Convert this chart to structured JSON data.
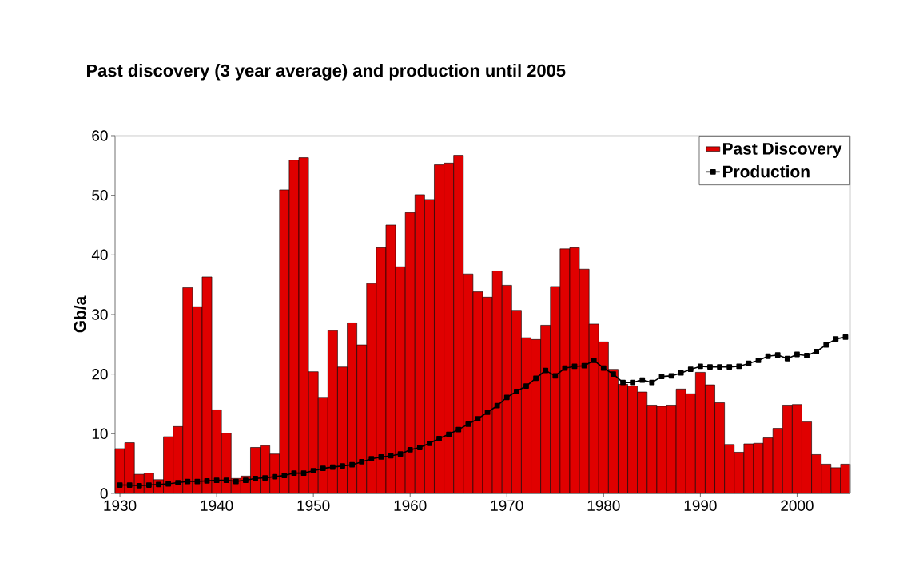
{
  "chart_data": {
    "type": "bar",
    "title": "Past discovery (3 year average) and production until 2005",
    "ylabel": "Gb/a",
    "x": [
      1930,
      1931,
      1932,
      1933,
      1934,
      1935,
      1936,
      1937,
      1938,
      1939,
      1940,
      1941,
      1942,
      1943,
      1944,
      1945,
      1946,
      1947,
      1948,
      1949,
      1950,
      1951,
      1952,
      1953,
      1954,
      1955,
      1956,
      1957,
      1958,
      1959,
      1960,
      1961,
      1962,
      1963,
      1964,
      1965,
      1966,
      1967,
      1968,
      1969,
      1970,
      1971,
      1972,
      1973,
      1974,
      1975,
      1976,
      1977,
      1978,
      1979,
      1980,
      1981,
      1982,
      1983,
      1984,
      1985,
      1986,
      1987,
      1988,
      1989,
      1990,
      1991,
      1992,
      1993,
      1994,
      1995,
      1996,
      1997,
      1998,
      1999,
      2000,
      2001,
      2002,
      2003,
      2004,
      2005
    ],
    "series": [
      {
        "name": "Past Discovery",
        "color": "#e00000",
        "values": [
          7.5,
          8.5,
          3.2,
          3.4,
          2.3,
          9.5,
          11.2,
          34.5,
          31.3,
          36.3,
          14,
          10.1,
          2.5,
          2.9,
          7.7,
          8,
          6.6,
          50.9,
          55.9,
          56.3,
          20.4,
          16.1,
          27.3,
          21.2,
          28.6,
          24.9,
          35.2,
          41.2,
          45,
          38,
          47.1,
          50.1,
          49.3,
          55.1,
          55.4,
          56.7,
          36.8,
          33.8,
          32.9,
          37.3,
          34.9,
          30.7,
          26.1,
          25.8,
          28.2,
          34.7,
          41,
          41.2,
          37.6,
          28.4,
          25.4,
          20.8,
          18.3,
          18,
          17,
          14.8,
          14.6,
          14.8,
          17.5,
          16.7,
          20.3,
          18.2,
          15.2,
          8.2,
          6.9,
          8.3,
          8.4,
          9.3,
          10.9,
          14.8,
          14.9,
          12,
          6.5,
          4.9,
          4.3,
          4.9
        ]
      },
      {
        "name": "Production",
        "type": "line",
        "color": "#000000",
        "marker": "square",
        "values": [
          1.4,
          1.4,
          1.3,
          1.4,
          1.5,
          1.6,
          1.8,
          2.0,
          2.0,
          2.1,
          2.2,
          2.2,
          2.0,
          2.2,
          2.5,
          2.6,
          2.8,
          3.0,
          3.4,
          3.4,
          3.8,
          4.2,
          4.4,
          4.6,
          4.8,
          5.3,
          5.8,
          6.1,
          6.3,
          6.6,
          7.3,
          7.7,
          8.4,
          9.2,
          9.9,
          10.7,
          11.6,
          12.5,
          13.6,
          14.7,
          16.1,
          17.1,
          18.0,
          19.3,
          20.6,
          19.7,
          21.0,
          21.3,
          21.4,
          22.3,
          21.0,
          20.0,
          18.6,
          18.6,
          19.0,
          18.6,
          19.6,
          19.7,
          20.2,
          20.8,
          21.3,
          21.2,
          21.2,
          21.2,
          21.3,
          21.8,
          22.3,
          23.0,
          23.2,
          22.6,
          23.3,
          23.1,
          23.8,
          24.9,
          25.9,
          26.2
        ]
      }
    ],
    "xlim": [
      1929.5,
      2005.5
    ],
    "xticks": [
      1930,
      1940,
      1950,
      1960,
      1970,
      1980,
      1990,
      2000
    ],
    "ylim": [
      0,
      60
    ],
    "yticks": [
      0,
      10,
      20,
      30,
      40,
      50,
      60
    ],
    "legend": "top right"
  }
}
